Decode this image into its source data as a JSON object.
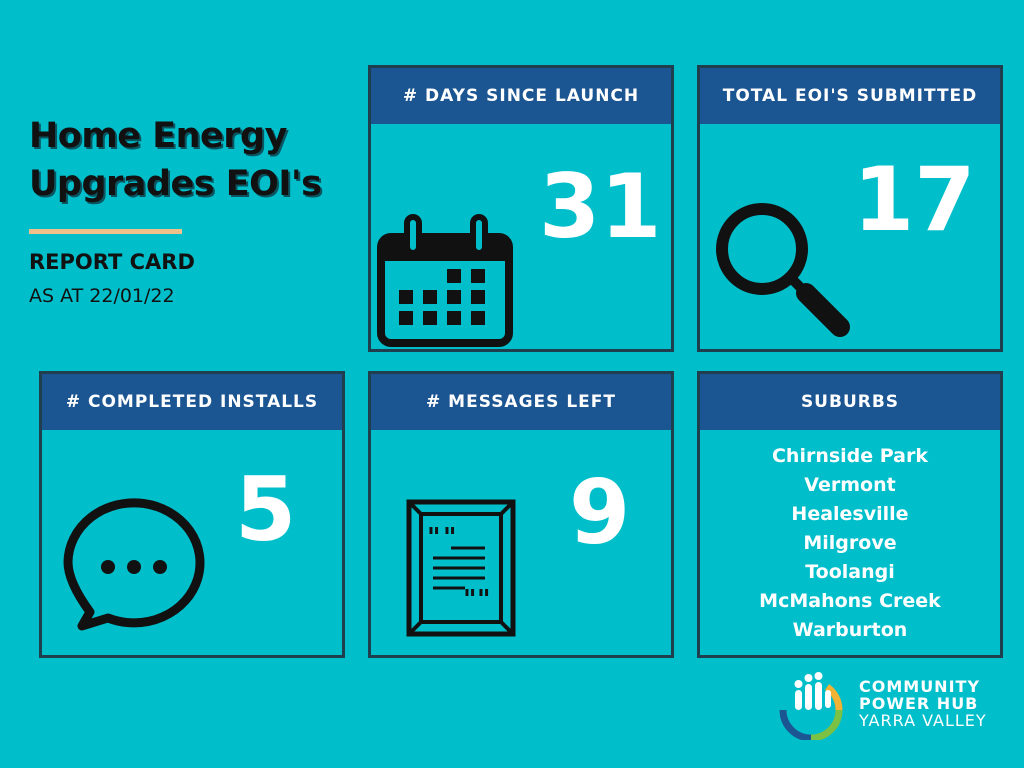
{
  "title": {
    "line1": "Home Energy",
    "line2": "Upgrades EOI's"
  },
  "subtitle": "REPORT CARD",
  "as_at": "AS AT 22/01/22",
  "cards": {
    "days": {
      "header": "# DAYS SINCE LAUNCH",
      "value": "31",
      "icon": "calendar-icon"
    },
    "eois": {
      "header": "TOTAL EOI'S SUBMITTED",
      "value": "17",
      "icon": "magnifier-icon"
    },
    "installs": {
      "header": "# COMPLETED INSTALLS",
      "value": "5",
      "icon": "speech-bubble-icon"
    },
    "messages": {
      "header": "# MESSAGES LEFT",
      "value": "9",
      "icon": "quote-document-icon"
    },
    "suburbs": {
      "header": "SUBURBS",
      "items": [
        "Chirnside Park",
        "Vermont",
        "Healesville",
        "Milgrove",
        "Toolangi",
        "McMahons Creek",
        "Warburton"
      ]
    }
  },
  "logo": {
    "line1": "COMMUNITY",
    "line2": "POWER HUB",
    "line3": "YARRA VALLEY"
  },
  "colors": {
    "background": "#00BFCB",
    "header": "#1C5692",
    "border": "#1F3E4E",
    "accent": "#F0C08A"
  }
}
